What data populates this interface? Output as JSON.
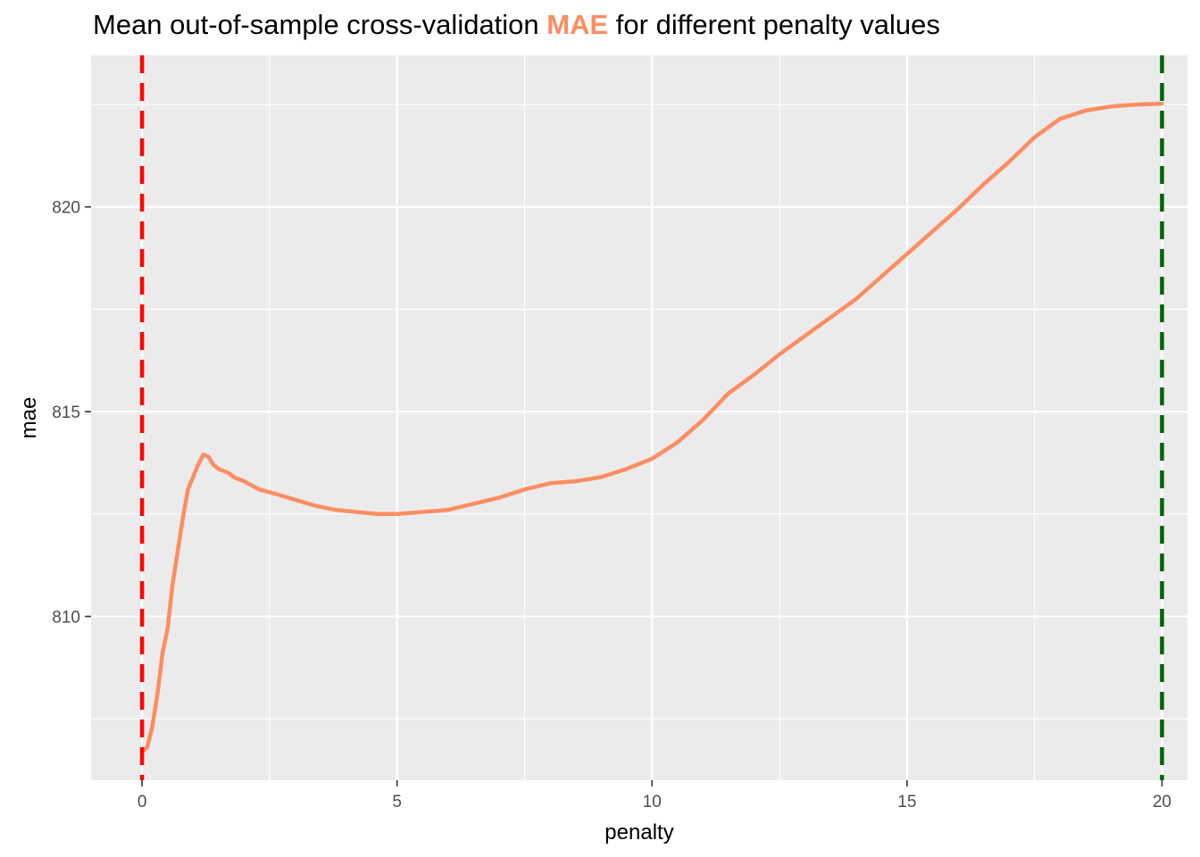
{
  "chart_data": {
    "type": "line",
    "title_before": "Mean out-of-sample cross-validation ",
    "title_accent": "MAE",
    "title_after": " for different penalty values",
    "xlabel": "penalty",
    "ylabel": "mae",
    "xlim": [
      -1,
      20.5
    ],
    "ylim": [
      806.0,
      823.7
    ],
    "x_ticks": [
      0,
      5,
      10,
      15,
      20
    ],
    "y_ticks": [
      810,
      815,
      820
    ],
    "grid": true,
    "panel_background": "#EBEBEB",
    "grid_color": "#FFFFFF",
    "series": [
      {
        "color": "#FC8D62",
        "x": [
          0.0,
          0.1,
          0.2,
          0.3,
          0.4,
          0.5,
          0.6,
          0.7,
          0.8,
          0.9,
          1.0,
          1.1,
          1.2,
          1.3,
          1.4,
          1.5,
          1.6,
          1.7,
          1.8,
          2.0,
          2.3,
          2.6,
          3.0,
          3.4,
          3.8,
          4.2,
          4.6,
          5.0,
          5.5,
          6.0,
          6.5,
          7.0,
          7.5,
          8.0,
          8.5,
          9.0,
          9.5,
          10.0,
          10.5,
          11.0,
          11.5,
          12.0,
          12.5,
          13.0,
          13.5,
          14.0,
          14.5,
          15.0,
          15.5,
          16.0,
          16.5,
          17.0,
          17.5,
          18.0,
          18.5,
          19.0,
          19.5,
          20.0
        ],
        "values": [
          806.7,
          806.8,
          807.3,
          808.1,
          809.1,
          809.7,
          810.8,
          811.6,
          812.4,
          813.1,
          813.4,
          813.7,
          813.95,
          813.9,
          813.7,
          813.6,
          813.55,
          813.5,
          813.4,
          813.3,
          813.1,
          813.0,
          812.85,
          812.7,
          812.6,
          812.55,
          812.5,
          812.5,
          812.55,
          812.6,
          812.75,
          812.9,
          813.1,
          813.25,
          813.3,
          813.4,
          813.6,
          813.85,
          814.25,
          814.8,
          815.45,
          815.9,
          816.4,
          816.85,
          817.3,
          817.75,
          818.3,
          818.85,
          819.4,
          819.95,
          820.55,
          821.1,
          821.7,
          822.15,
          822.35,
          822.45,
          822.5,
          822.52
        ],
        "_comment": "values follow curve"
      }
    ],
    "vlines": [
      {
        "x": 0,
        "color": "#FF0000",
        "style": "dashed"
      },
      {
        "x": 20,
        "color": "#006400",
        "style": "dashed"
      }
    ]
  }
}
